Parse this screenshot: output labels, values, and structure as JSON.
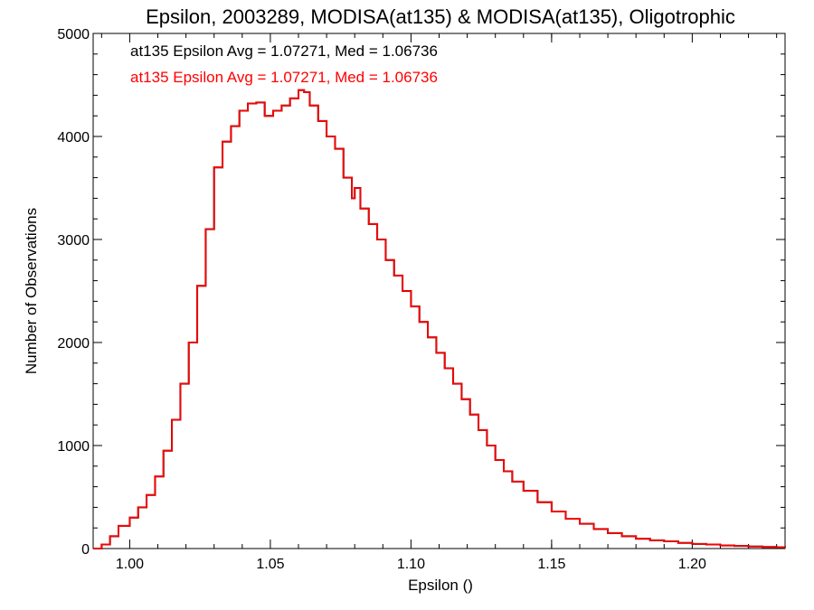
{
  "chart_data": {
    "type": "line",
    "title": "Epsilon, 2003289, MODISA(at135) & MODISA(at135), Oligotrophic",
    "xlabel": "Epsilon ()",
    "ylabel": "Number of Observations",
    "xlim": [
      0.987,
      1.233
    ],
    "ylim": [
      0,
      5000
    ],
    "x_ticks": [
      1.0,
      1.05,
      1.1,
      1.15,
      1.2
    ],
    "x_tick_labels": [
      "1.00",
      "1.05",
      "1.10",
      "1.15",
      "1.20"
    ],
    "y_ticks": [
      0,
      1000,
      2000,
      3000,
      4000,
      5000
    ],
    "y_tick_labels": [
      "0",
      "1000",
      "2000",
      "3000",
      "4000",
      "5000"
    ],
    "step": true,
    "legend_position": "top-left",
    "annotations": [
      {
        "text": "at135 Epsilon Avg = 1.07271, Med = 1.06736",
        "color": "#000000"
      },
      {
        "text": "at135 Epsilon Avg = 1.07271, Med = 1.06736",
        "color": "#ff0000"
      }
    ],
    "x": [
      0.987,
      0.99,
      0.993,
      0.996,
      1.0,
      1.003,
      1.006,
      1.009,
      1.012,
      1.015,
      1.018,
      1.021,
      1.024,
      1.027,
      1.03,
      1.033,
      1.036,
      1.039,
      1.042,
      1.045,
      1.048,
      1.051,
      1.054,
      1.057,
      1.06,
      1.062,
      1.064,
      1.067,
      1.07,
      1.073,
      1.076,
      1.079,
      1.08,
      1.082,
      1.085,
      1.088,
      1.091,
      1.094,
      1.097,
      1.1,
      1.103,
      1.106,
      1.109,
      1.112,
      1.115,
      1.118,
      1.121,
      1.124,
      1.127,
      1.13,
      1.133,
      1.136,
      1.14,
      1.145,
      1.15,
      1.155,
      1.16,
      1.165,
      1.17,
      1.175,
      1.18,
      1.185,
      1.19,
      1.195,
      1.2,
      1.205,
      1.21,
      1.215,
      1.22,
      1.225,
      1.23,
      1.233
    ],
    "series": [
      {
        "color": "#000000",
        "values": [
          0,
          40,
          120,
          220,
          300,
          400,
          520,
          700,
          950,
          1250,
          1600,
          2000,
          2550,
          3100,
          3700,
          3950,
          4100,
          4250,
          4320,
          4330,
          4200,
          4250,
          4300,
          4370,
          4450,
          4430,
          4300,
          4150,
          4000,
          3880,
          3600,
          3400,
          3500,
          3300,
          3150,
          3000,
          2800,
          2650,
          2500,
          2350,
          2200,
          2050,
          1900,
          1750,
          1600,
          1450,
          1300,
          1150,
          1000,
          860,
          750,
          650,
          560,
          450,
          360,
          290,
          240,
          190,
          150,
          120,
          95,
          80,
          70,
          55,
          45,
          40,
          30,
          25,
          20,
          15,
          12,
          10
        ]
      },
      {
        "color": "#ff0000",
        "values": [
          0,
          40,
          120,
          220,
          300,
          400,
          520,
          700,
          950,
          1250,
          1600,
          2000,
          2550,
          3100,
          3700,
          3950,
          4100,
          4250,
          4320,
          4330,
          4200,
          4250,
          4300,
          4370,
          4450,
          4430,
          4300,
          4150,
          4000,
          3880,
          3600,
          3400,
          3500,
          3300,
          3150,
          3000,
          2800,
          2650,
          2500,
          2350,
          2200,
          2050,
          1900,
          1750,
          1600,
          1450,
          1300,
          1150,
          1000,
          860,
          750,
          650,
          560,
          450,
          360,
          290,
          240,
          190,
          150,
          120,
          95,
          80,
          70,
          55,
          45,
          40,
          30,
          25,
          20,
          15,
          12,
          10
        ]
      }
    ]
  }
}
